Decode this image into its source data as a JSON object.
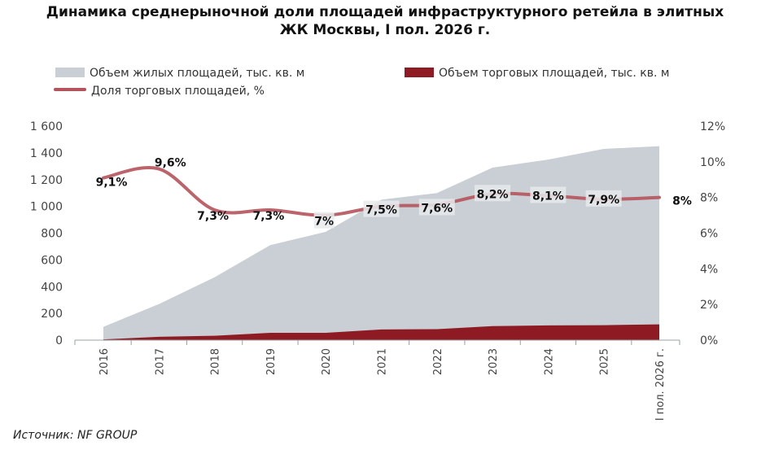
{
  "title_line1": "Динамика среднерыночной доли площадей инфраструктурного ретейла в элитных",
  "title_line2": "ЖК Москвы, I пол. 2026 г.",
  "legend": {
    "residential": "Объем жилых площадей, тыс. кв. м",
    "retail": "Объем торговых площадей, тыс. кв. м",
    "share": "Доля торговых площадей, %"
  },
  "source": "Источник: NF GROUP",
  "colors": {
    "residential": "#c9cfd4",
    "retail": "#8e1b24",
    "share": "#b5535c"
  },
  "chart_data": {
    "type": "area",
    "categories": [
      "2016",
      "2017",
      "2018",
      "2019",
      "2020",
      "2021",
      "2022",
      "2023",
      "2024",
      "2025",
      "I пол. 2026 г."
    ],
    "series": [
      {
        "name": "Объем жилых площадей, тыс. кв. м",
        "type": "area",
        "axis": "left",
        "values": [
          100,
          270,
          470,
          710,
          810,
          1050,
          1100,
          1290,
          1350,
          1430,
          1450
        ]
      },
      {
        "name": "Объем торговых площадей, тыс. кв. м",
        "type": "area",
        "axis": "left",
        "values": [
          5,
          25,
          33,
          55,
          55,
          80,
          82,
          105,
          110,
          112,
          118
        ]
      },
      {
        "name": "Доля торговых площадей, %",
        "type": "line",
        "axis": "right",
        "values": [
          9.1,
          9.6,
          7.3,
          7.3,
          7.0,
          7.5,
          7.6,
          8.2,
          8.1,
          7.9,
          8.0
        ],
        "labels": [
          "9,1%",
          "9,6%",
          "7,3%",
          "7,3%",
          "7%",
          "7,5%",
          "7,6%",
          "8,2%",
          "8,1%",
          "7,9%",
          "8%"
        ]
      }
    ],
    "y_left": {
      "ticks": [
        "0",
        "200",
        "400",
        "600",
        "800",
        "1 000",
        "1 200",
        "1 400",
        "1 600"
      ],
      "min": 0,
      "max": 1600
    },
    "y_right": {
      "ticks": [
        "0%",
        "2%",
        "4%",
        "6%",
        "8%",
        "10%",
        "12%"
      ],
      "min": 0,
      "max": 12
    },
    "grid": false,
    "legend_position": "top"
  }
}
